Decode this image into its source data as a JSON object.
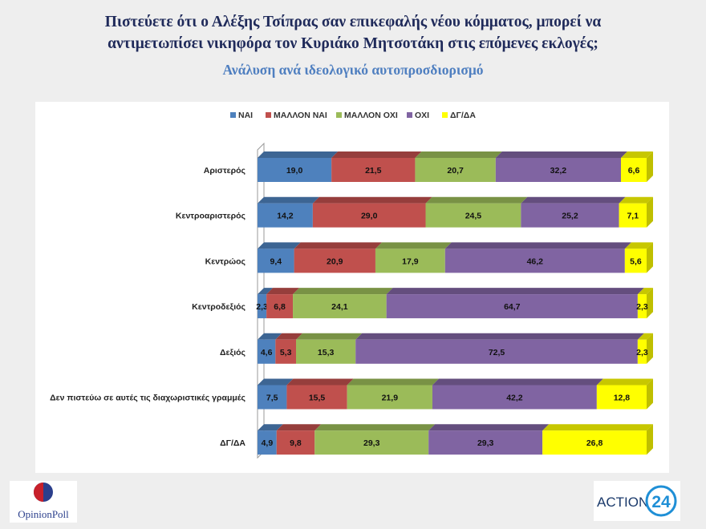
{
  "header": {
    "title_line1": "Πιστεύετε ότι ο Αλέξης Τσίπρας σαν επικεφαλής νέου κόμματος, μπορεί να",
    "title_line2": "αντιμετωπίσει νικηφόρα τον Κυριάκο Μητσοτάκη στις επόμενες εκλογές;",
    "subtitle": "Ανάλυση ανά ιδεολογικό αυτοπροσδιορισμό"
  },
  "chart_data": {
    "type": "bar",
    "orientation": "horizontal",
    "stacked": true,
    "percent_stacked": true,
    "legend_position": "top",
    "categories": [
      "Αριστερός",
      "Κεντροαριστερός",
      "Κεντρώος",
      "Κεντροδεξιός",
      "Δεξιός",
      "Δεν πιστεύω σε αυτές τις διαχωριστικές γραμμές",
      "ΔΓ/ΔΑ"
    ],
    "series": [
      {
        "name": "ΝΑΙ",
        "color": "#4e81bd",
        "values": [
          "19,0",
          "14,2",
          "9,4",
          "2,3",
          "4,6",
          "7,5",
          "4,9"
        ]
      },
      {
        "name": "ΜΑΛΛΟΝ ΝΑΙ",
        "color": "#c0504d",
        "values": [
          "21,5",
          "29,0",
          "20,9",
          "6,8",
          "5,3",
          "15,5",
          "9,8"
        ]
      },
      {
        "name": "ΜΑΛΛΟΝ ΟΧΙ",
        "color": "#9bbb59",
        "values": [
          "20,7",
          "24,5",
          "17,9",
          "24,1",
          "15,3",
          "21,9",
          "29,3"
        ]
      },
      {
        "name": "ΟΧΙ",
        "color": "#8064a2",
        "values": [
          "32,2",
          "25,2",
          "46,2",
          "64,7",
          "72,5",
          "42,2",
          "29,3"
        ]
      },
      {
        "name": "ΔΓ/ΔΑ",
        "color": "#ffff00",
        "values": [
          "6,6",
          "7,1",
          "5,6",
          "2,3",
          "2,3",
          "12,8",
          "26,8"
        ]
      }
    ]
  },
  "logos": {
    "left": "OpinionPoll",
    "right_text": "ACTION",
    "right_number": "24"
  }
}
